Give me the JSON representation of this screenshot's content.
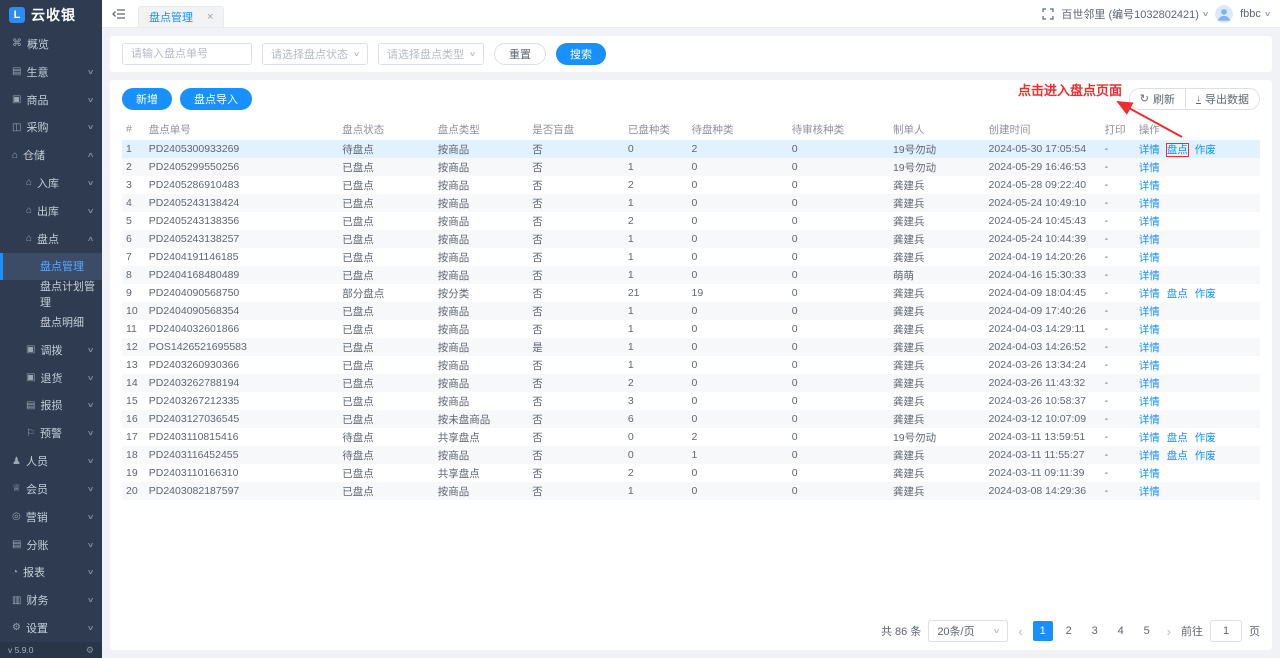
{
  "app": {
    "logo_text": "云收银",
    "version": "v 5.9.0"
  },
  "icons": {
    "overview": "⌘",
    "business": "▤",
    "goods": "▣",
    "purchase": "◫",
    "warehouse": "⌂",
    "inbound": "⌂",
    "outbound": "⌂",
    "stocktake": "⌂",
    "transfer": "▣",
    "returns": "▣",
    "damage": "▤",
    "alert": "⚐",
    "staff": "♟",
    "member": "♕",
    "marketing": "◎",
    "split": "▤",
    "report": "◔",
    "finance": "▥",
    "settings": "⚙",
    "gear": "⚙",
    "tab_close": "×",
    "chevron_down": "∨",
    "chevron_up": "∧",
    "refresh": "↻",
    "download": "↓",
    "prev": "‹",
    "next": "›"
  },
  "sidebar": {
    "items": [
      {
        "id": "overview",
        "label": "概览",
        "icon": "overview",
        "level": 1
      },
      {
        "id": "business",
        "label": "生意",
        "icon": "business",
        "level": 1,
        "chevron": "down"
      },
      {
        "id": "goods",
        "label": "商品",
        "icon": "goods",
        "level": 1,
        "chevron": "down"
      },
      {
        "id": "purchase",
        "label": "采购",
        "icon": "purchase",
        "level": 1,
        "chevron": "down"
      },
      {
        "id": "warehouse",
        "label": "仓储",
        "icon": "warehouse",
        "level": 1,
        "chevron": "up"
      },
      {
        "id": "inbound",
        "label": "入库",
        "icon": "inbound",
        "level": 2,
        "chevron": "down"
      },
      {
        "id": "outbound",
        "label": "出库",
        "icon": "outbound",
        "level": 2,
        "chevron": "down"
      },
      {
        "id": "stocktake",
        "label": "盘点",
        "icon": "stocktake",
        "level": 2,
        "chevron": "up"
      },
      {
        "id": "stocktake-management",
        "label": "盘点管理",
        "level": 3,
        "active": true
      },
      {
        "id": "stocktake-plan-management",
        "label": "盘点计划管理",
        "level": 3
      },
      {
        "id": "stocktake-detail",
        "label": "盘点明细",
        "level": 3
      },
      {
        "id": "transfer",
        "label": "调拨",
        "icon": "transfer",
        "level": 2,
        "chevron": "down"
      },
      {
        "id": "returns",
        "label": "退货",
        "icon": "returns",
        "level": 2,
        "chevron": "down"
      },
      {
        "id": "damage",
        "label": "报损",
        "icon": "damage",
        "level": 2,
        "chevron": "down"
      },
      {
        "id": "alert",
        "label": "预警",
        "icon": "alert",
        "level": 2,
        "chevron": "down"
      },
      {
        "id": "staff",
        "label": "人员",
        "icon": "staff",
        "level": 1,
        "chevron": "down"
      },
      {
        "id": "member",
        "label": "会员",
        "icon": "member",
        "level": 1,
        "chevron": "down"
      },
      {
        "id": "marketing",
        "label": "营销",
        "icon": "marketing",
        "level": 1,
        "chevron": "down"
      },
      {
        "id": "split-account",
        "label": "分账",
        "icon": "split",
        "level": 1,
        "chevron": "down"
      },
      {
        "id": "report",
        "label": "报表",
        "icon": "report",
        "level": 1,
        "chevron": "down"
      },
      {
        "id": "finance",
        "label": "财务",
        "icon": "finance",
        "level": 1,
        "chevron": "down"
      },
      {
        "id": "settings",
        "label": "设置",
        "icon": "settings",
        "level": 1,
        "chevron": "down"
      }
    ]
  },
  "topbar": {
    "tab_label": "盘点管理",
    "store": "百世邻里 (编号1032802421)",
    "user": "fbbc"
  },
  "filters": {
    "order_no_placeholder": "请输入盘点单号",
    "status_placeholder": "请选择盘点状态",
    "type_placeholder": "请选择盘点类型",
    "reset_label": "重置",
    "search_label": "搜索"
  },
  "toolbar": {
    "add_label": "新增",
    "import_label": "盘点导入",
    "refresh_label": "刷新",
    "export_label": "导出数据"
  },
  "annotation": {
    "text": "点击进入盘点页面"
  },
  "table": {
    "columns": [
      {
        "key": "no",
        "label": "#"
      },
      {
        "key": "order_no",
        "label": "盘点单号"
      },
      {
        "key": "status",
        "label": "盘点状态"
      },
      {
        "key": "type",
        "label": "盘点类型"
      },
      {
        "key": "blind",
        "label": "是否盲盘"
      },
      {
        "key": "counted",
        "label": "已盘种类"
      },
      {
        "key": "pending",
        "label": "待盘种类"
      },
      {
        "key": "review",
        "label": "待审核种类"
      },
      {
        "key": "creator",
        "label": "制单人"
      },
      {
        "key": "created",
        "label": "创建时间"
      },
      {
        "key": "print",
        "label": "打印"
      },
      {
        "key": "ops",
        "label": "操作"
      }
    ],
    "rows": [
      {
        "no": "1",
        "order_no": "PD2405300933269",
        "status": "待盘点",
        "type": "按商品",
        "blind": "否",
        "counted": "0",
        "pending": "2",
        "review": "0",
        "creator": "19号勿动",
        "created": "2024-05-30 17:05:54",
        "print": "-",
        "ops": [
          "详情",
          "盘点",
          "作废"
        ],
        "highlight": true,
        "boxed_op": "盘点"
      },
      {
        "no": "2",
        "order_no": "PD2405299550256",
        "status": "已盘点",
        "type": "按商品",
        "blind": "否",
        "counted": "1",
        "pending": "0",
        "review": "0",
        "creator": "19号勿动",
        "created": "2024-05-29 16:46:53",
        "print": "-",
        "ops": [
          "详情"
        ]
      },
      {
        "no": "3",
        "order_no": "PD2405286910483",
        "status": "已盘点",
        "type": "按商品",
        "blind": "否",
        "counted": "2",
        "pending": "0",
        "review": "0",
        "creator": "龚建兵",
        "created": "2024-05-28 09:22:40",
        "print": "-",
        "ops": [
          "详情"
        ]
      },
      {
        "no": "4",
        "order_no": "PD2405243138424",
        "status": "已盘点",
        "type": "按商品",
        "blind": "否",
        "counted": "1",
        "pending": "0",
        "review": "0",
        "creator": "龚建兵",
        "created": "2024-05-24 10:49:10",
        "print": "-",
        "ops": [
          "详情"
        ]
      },
      {
        "no": "5",
        "order_no": "PD2405243138356",
        "status": "已盘点",
        "type": "按商品",
        "blind": "否",
        "counted": "2",
        "pending": "0",
        "review": "0",
        "creator": "龚建兵",
        "created": "2024-05-24 10:45:43",
        "print": "-",
        "ops": [
          "详情"
        ]
      },
      {
        "no": "6",
        "order_no": "PD2405243138257",
        "status": "已盘点",
        "type": "按商品",
        "blind": "否",
        "counted": "1",
        "pending": "0",
        "review": "0",
        "creator": "龚建兵",
        "created": "2024-05-24 10:44:39",
        "print": "-",
        "ops": [
          "详情"
        ]
      },
      {
        "no": "7",
        "order_no": "PD2404191146185",
        "status": "已盘点",
        "type": "按商品",
        "blind": "否",
        "counted": "1",
        "pending": "0",
        "review": "0",
        "creator": "龚建兵",
        "created": "2024-04-19 14:20:26",
        "print": "-",
        "ops": [
          "详情"
        ]
      },
      {
        "no": "8",
        "order_no": "PD2404168480489",
        "status": "已盘点",
        "type": "按商品",
        "blind": "否",
        "counted": "1",
        "pending": "0",
        "review": "0",
        "creator": "萌萌",
        "created": "2024-04-16 15:30:33",
        "print": "-",
        "ops": [
          "详情"
        ]
      },
      {
        "no": "9",
        "order_no": "PD2404090568750",
        "status": "部分盘点",
        "type": "按分类",
        "blind": "否",
        "counted": "21",
        "pending": "19",
        "review": "0",
        "creator": "龚建兵",
        "created": "2024-04-09 18:04:45",
        "print": "-",
        "ops": [
          "详情",
          "盘点",
          "作废"
        ]
      },
      {
        "no": "10",
        "order_no": "PD2404090568354",
        "status": "已盘点",
        "type": "按商品",
        "blind": "否",
        "counted": "1",
        "pending": "0",
        "review": "0",
        "creator": "龚建兵",
        "created": "2024-04-09 17:40:26",
        "print": "-",
        "ops": [
          "详情"
        ]
      },
      {
        "no": "11",
        "order_no": "PD2404032601866",
        "status": "已盘点",
        "type": "按商品",
        "blind": "否",
        "counted": "1",
        "pending": "0",
        "review": "0",
        "creator": "龚建兵",
        "created": "2024-04-03 14:29:11",
        "print": "-",
        "ops": [
          "详情"
        ]
      },
      {
        "no": "12",
        "order_no": "POS1426521695583",
        "status": "已盘点",
        "type": "按商品",
        "blind": "是",
        "counted": "1",
        "pending": "0",
        "review": "0",
        "creator": "龚建兵",
        "created": "2024-04-03 14:26:52",
        "print": "-",
        "ops": [
          "详情"
        ]
      },
      {
        "no": "13",
        "order_no": "PD2403260930366",
        "status": "已盘点",
        "type": "按商品",
        "blind": "否",
        "counted": "1",
        "pending": "0",
        "review": "0",
        "creator": "龚建兵",
        "created": "2024-03-26 13:34:24",
        "print": "-",
        "ops": [
          "详情"
        ]
      },
      {
        "no": "14",
        "order_no": "PD2403262788194",
        "status": "已盘点",
        "type": "按商品",
        "blind": "否",
        "counted": "2",
        "pending": "0",
        "review": "0",
        "creator": "龚建兵",
        "created": "2024-03-26 11:43:32",
        "print": "-",
        "ops": [
          "详情"
        ]
      },
      {
        "no": "15",
        "order_no": "PD2403267212335",
        "status": "已盘点",
        "type": "按商品",
        "blind": "否",
        "counted": "3",
        "pending": "0",
        "review": "0",
        "creator": "龚建兵",
        "created": "2024-03-26 10:58:37",
        "print": "-",
        "ops": [
          "详情"
        ]
      },
      {
        "no": "16",
        "order_no": "PD2403127036545",
        "status": "已盘点",
        "type": "按未盘商品",
        "blind": "否",
        "counted": "6",
        "pending": "0",
        "review": "0",
        "creator": "龚建兵",
        "created": "2024-03-12 10:07:09",
        "print": "-",
        "ops": [
          "详情"
        ]
      },
      {
        "no": "17",
        "order_no": "PD2403110815416",
        "status": "待盘点",
        "type": "共享盘点",
        "blind": "否",
        "counted": "0",
        "pending": "2",
        "review": "0",
        "creator": "19号勿动",
        "created": "2024-03-11 13:59:51",
        "print": "-",
        "ops": [
          "详情",
          "盘点",
          "作废"
        ]
      },
      {
        "no": "18",
        "order_no": "PD2403116452455",
        "status": "待盘点",
        "type": "按商品",
        "blind": "否",
        "counted": "0",
        "pending": "1",
        "review": "0",
        "creator": "龚建兵",
        "created": "2024-03-11 11:55:27",
        "print": "-",
        "ops": [
          "详情",
          "盘点",
          "作废"
        ]
      },
      {
        "no": "19",
        "order_no": "PD2403110166310",
        "status": "已盘点",
        "type": "共享盘点",
        "blind": "否",
        "counted": "2",
        "pending": "0",
        "review": "0",
        "creator": "龚建兵",
        "created": "2024-03-11 09:11:39",
        "print": "-",
        "ops": [
          "详情"
        ]
      },
      {
        "no": "20",
        "order_no": "PD2403082187597",
        "status": "已盘点",
        "type": "按商品",
        "blind": "否",
        "counted": "1",
        "pending": "0",
        "review": "0",
        "creator": "龚建兵",
        "created": "2024-03-08 14:29:36",
        "print": "-",
        "ops": [
          "详情"
        ]
      }
    ]
  },
  "pagination": {
    "total_label": "共 86 条",
    "page_size": "20条/页",
    "pages": [
      "1",
      "2",
      "3",
      "4",
      "5"
    ],
    "current": "1",
    "goto_label": "前往",
    "goto_value": "1",
    "page_label": "页"
  }
}
